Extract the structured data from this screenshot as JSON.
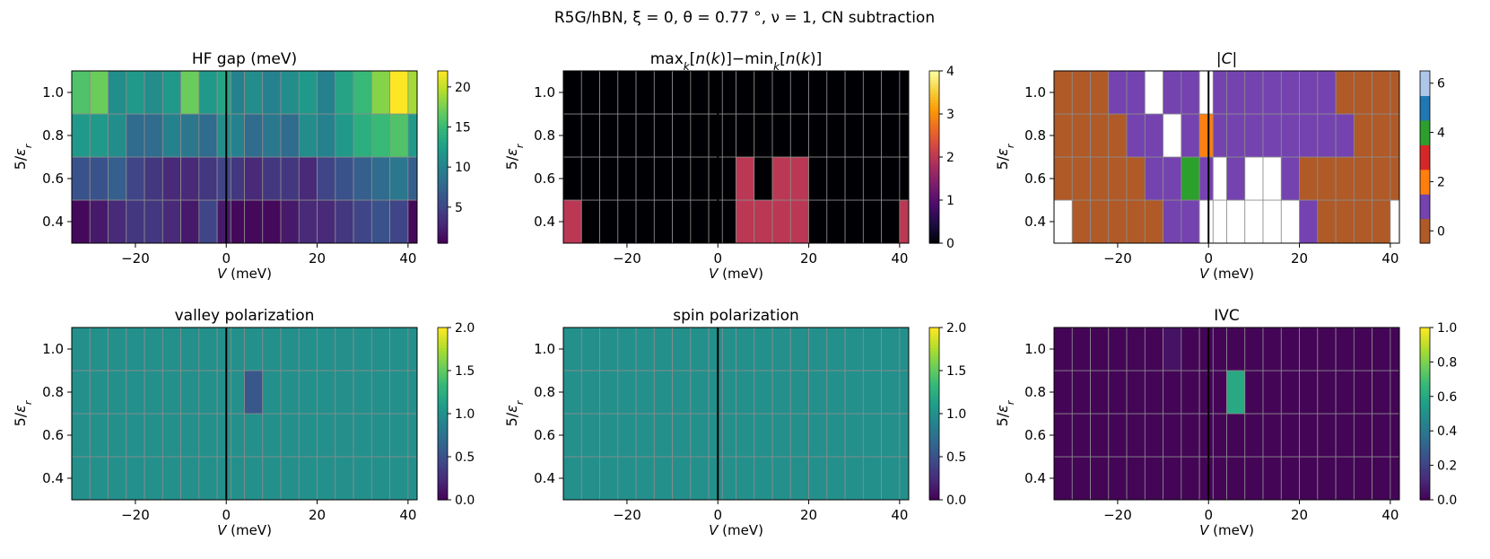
{
  "suptitle": "R5G/hBN,  ξ = 0,  θ = 0.77 °,  ν = 1,  CN subtraction",
  "chart_data": [
    {
      "type": "heatmap",
      "title": "HF gap (meV)",
      "xlabel": "V (meV)",
      "ylabel": "5/εr",
      "colormap": "viridis",
      "xlim": [
        -34,
        42
      ],
      "ylim": [
        0.3,
        1.1
      ],
      "x_centers": [
        -32,
        -28,
        -24,
        -20,
        -16,
        -12,
        -8,
        -4,
        0,
        2,
        6,
        10,
        14,
        18,
        22,
        26,
        30,
        34,
        38,
        42
      ],
      "y_centers": [
        0.4,
        0.6,
        0.8,
        1.0
      ],
      "xticks": [
        "−20",
        "0",
        "20",
        "40"
      ],
      "xtick_values": [
        -20,
        0,
        20,
        40
      ],
      "yticks": [
        "0.4",
        "0.6",
        "0.8",
        "1.0"
      ],
      "ytick_values": [
        0.4,
        0.6,
        0.8,
        1.0
      ],
      "clim": [
        0.5,
        22
      ],
      "cbar_ticks": [
        "5",
        "10",
        "15",
        "20"
      ],
      "cbar_tick_values": [
        5,
        10,
        15,
        20
      ],
      "values": [
        [
          1,
          2,
          3,
          4,
          4,
          3,
          2,
          5,
          2,
          1,
          1,
          1,
          2,
          3,
          3,
          4,
          5,
          6,
          5,
          1
        ],
        [
          6,
          6,
          7,
          5,
          4,
          3,
          3,
          4,
          5,
          4,
          3,
          4,
          4,
          3,
          5,
          6,
          7,
          8,
          9,
          7
        ],
        [
          12,
          12,
          11,
          8,
          8,
          10,
          9,
          8,
          11,
          10,
          8,
          9,
          8,
          11,
          10,
          12,
          14,
          15,
          16,
          12
        ],
        [
          16,
          17,
          11,
          12,
          11,
          12,
          17,
          12,
          13,
          10,
          11,
          10,
          11,
          12,
          10,
          13,
          15,
          18,
          22,
          19
        ]
      ]
    },
    {
      "type": "heatmap",
      "title": "max_k[n(k)]−min_k[n(k)]",
      "xlabel": "V (meV)",
      "ylabel": "5/εr",
      "colormap": "inferno",
      "xlim": [
        -34,
        42
      ],
      "ylim": [
        0.3,
        1.1
      ],
      "x_centers": [
        -32,
        -28,
        -24,
        -20,
        -16,
        -12,
        -8,
        -4,
        0,
        2,
        6,
        10,
        14,
        18,
        22,
        26,
        30,
        34,
        38,
        42
      ],
      "y_centers": [
        0.4,
        0.6,
        0.8,
        1.0
      ],
      "xticks": [
        "−20",
        "0",
        "20",
        "40"
      ],
      "xtick_values": [
        -20,
        0,
        20,
        40
      ],
      "yticks": [
        "0.4",
        "0.6",
        "0.8",
        "1.0"
      ],
      "ytick_values": [
        0.4,
        0.6,
        0.8,
        1.0
      ],
      "clim": [
        0,
        4
      ],
      "cbar_ticks": [
        "0",
        "1",
        "2",
        "3",
        "4"
      ],
      "cbar_tick_values": [
        0,
        1,
        2,
        3,
        4
      ],
      "values": [
        [
          2,
          0,
          0,
          0,
          0,
          0,
          0,
          0,
          0,
          0,
          2,
          2,
          2,
          2,
          0,
          0,
          0,
          0,
          0,
          2
        ],
        [
          0,
          0,
          0,
          0,
          0,
          0,
          0,
          0,
          0,
          0,
          2,
          0,
          2,
          2,
          0,
          0,
          0,
          0,
          0,
          0
        ],
        [
          0,
          0,
          0,
          0,
          0,
          0,
          0,
          0,
          0,
          0,
          0,
          0,
          0,
          0,
          0,
          0,
          0,
          0,
          0,
          0
        ],
        [
          0,
          0,
          0,
          0,
          0,
          0,
          0,
          0,
          0,
          0,
          0,
          0,
          0,
          0,
          0,
          0,
          0,
          0,
          0,
          0
        ]
      ]
    },
    {
      "type": "heatmap",
      "title": "|C|",
      "xlabel": "V (meV)",
      "ylabel": "5/εr",
      "colormap": "discrete",
      "xlim": [
        -34,
        42
      ],
      "ylim": [
        0.3,
        1.1
      ],
      "x_centers": [
        -32,
        -28,
        -24,
        -20,
        -16,
        -12,
        -8,
        -4,
        0,
        2,
        6,
        10,
        14,
        18,
        22,
        26,
        30,
        34,
        38,
        42
      ],
      "y_centers": [
        0.4,
        0.6,
        0.8,
        1.0
      ],
      "xticks": [
        "−20",
        "0",
        "20",
        "40"
      ],
      "xtick_values": [
        -20,
        0,
        20,
        40
      ],
      "yticks": [
        "0.4",
        "0.6",
        "0.8",
        "1.0"
      ],
      "ytick_values": [
        0.4,
        0.6,
        0.8,
        1.0
      ],
      "clim": [
        -0.5,
        6.5
      ],
      "discrete_colors": [
        "#b05a28",
        "#7443b0",
        "#ff7f0e",
        "#d62728",
        "#2ca02c",
        "#1f77b4",
        "#aec7e8"
      ],
      "cbar_ticks": [
        "0",
        "2",
        "4",
        "6"
      ],
      "cbar_tick_values": [
        0,
        2,
        4,
        6
      ],
      "values": [
        [
          7,
          0,
          0,
          0,
          0,
          0,
          1,
          1,
          7,
          7,
          7,
          7,
          7,
          7,
          1,
          0,
          0,
          0,
          0,
          7
        ],
        [
          0,
          0,
          0,
          0,
          0,
          1,
          1,
          4,
          1,
          7,
          1,
          7,
          7,
          1,
          0,
          0,
          0,
          0,
          0,
          0
        ],
        [
          0,
          0,
          0,
          0,
          1,
          1,
          7,
          1,
          2,
          1,
          1,
          1,
          1,
          1,
          1,
          1,
          1,
          0,
          0,
          0
        ],
        [
          0,
          0,
          0,
          1,
          1,
          7,
          1,
          1,
          7,
          1,
          1,
          1,
          1,
          1,
          1,
          1,
          0,
          0,
          0,
          0
        ]
      ]
    },
    {
      "type": "heatmap",
      "title": "valley polarization",
      "xlabel": "V (meV)",
      "ylabel": "5/εr",
      "colormap": "viridis",
      "xlim": [
        -34,
        42
      ],
      "ylim": [
        0.3,
        1.1
      ],
      "x_centers": [
        -32,
        -28,
        -24,
        -20,
        -16,
        -12,
        -8,
        -4,
        0,
        2,
        6,
        10,
        14,
        18,
        22,
        26,
        30,
        34,
        38,
        42
      ],
      "y_centers": [
        0.4,
        0.6,
        0.8,
        1.0
      ],
      "xticks": [
        "−20",
        "0",
        "20",
        "40"
      ],
      "xtick_values": [
        -20,
        0,
        20,
        40
      ],
      "yticks": [
        "0.4",
        "0.6",
        "0.8",
        "1.0"
      ],
      "ytick_values": [
        0.4,
        0.6,
        0.8,
        1.0
      ],
      "clim": [
        0,
        2
      ],
      "cbar_ticks": [
        "0.0",
        "0.5",
        "1.0",
        "1.5",
        "2.0"
      ],
      "cbar_tick_values": [
        0,
        0.5,
        1,
        1.5,
        2
      ],
      "values": [
        [
          1,
          1,
          1,
          1,
          1,
          1,
          1,
          1,
          1,
          1,
          1,
          1,
          1,
          1,
          1,
          1,
          1,
          1,
          1,
          1
        ],
        [
          1,
          1,
          1,
          1,
          1,
          1,
          1,
          1,
          1,
          1,
          1,
          1,
          1,
          1,
          1,
          1,
          1,
          1,
          1,
          1
        ],
        [
          1,
          1,
          1,
          1,
          1,
          1,
          1,
          1,
          1,
          1,
          0.55,
          1,
          1,
          1,
          1,
          1,
          1,
          1,
          1,
          1
        ],
        [
          1,
          1,
          1,
          1,
          1,
          1,
          1,
          1,
          1,
          1,
          1,
          1,
          1,
          1,
          1,
          1,
          1,
          1,
          1,
          1
        ]
      ]
    },
    {
      "type": "heatmap",
      "title": "spin polarization",
      "xlabel": "V (meV)",
      "ylabel": "5/εr",
      "colormap": "viridis",
      "xlim": [
        -34,
        42
      ],
      "ylim": [
        0.3,
        1.1
      ],
      "x_centers": [
        -32,
        -28,
        -24,
        -20,
        -16,
        -12,
        -8,
        -4,
        0,
        2,
        6,
        10,
        14,
        18,
        22,
        26,
        30,
        34,
        38,
        42
      ],
      "y_centers": [
        0.4,
        0.6,
        0.8,
        1.0
      ],
      "xticks": [
        "−20",
        "0",
        "20",
        "40"
      ],
      "xtick_values": [
        -20,
        0,
        20,
        40
      ],
      "yticks": [
        "0.4",
        "0.6",
        "0.8",
        "1.0"
      ],
      "ytick_values": [
        0.4,
        0.6,
        0.8,
        1.0
      ],
      "clim": [
        0,
        2
      ],
      "cbar_ticks": [
        "0.0",
        "0.5",
        "1.0",
        "1.5",
        "2.0"
      ],
      "cbar_tick_values": [
        0,
        0.5,
        1,
        1.5,
        2
      ],
      "values": [
        [
          1,
          1,
          1,
          1,
          1,
          1,
          1,
          1,
          1,
          1,
          1,
          1,
          1,
          1,
          1,
          1,
          1,
          1,
          1,
          1
        ],
        [
          1,
          1,
          1,
          1,
          1,
          1,
          1,
          1,
          1,
          1,
          1,
          1,
          1,
          1,
          1,
          1,
          1,
          1,
          1,
          1
        ],
        [
          1,
          1,
          1,
          1,
          1,
          1,
          1,
          1,
          1,
          1,
          1,
          1,
          1,
          1,
          1,
          1,
          1,
          1,
          1,
          1
        ],
        [
          1,
          1,
          1,
          1,
          1,
          1,
          1,
          1,
          1,
          1,
          1,
          1,
          1,
          1,
          1,
          1,
          1,
          1,
          1,
          1
        ]
      ]
    },
    {
      "type": "heatmap",
      "title": "IVC",
      "xlabel": "V (meV)",
      "ylabel": "5/εr",
      "colormap": "viridis",
      "xlim": [
        -34,
        42
      ],
      "ylim": [
        0.3,
        1.1
      ],
      "x_centers": [
        -32,
        -28,
        -24,
        -20,
        -16,
        -12,
        -8,
        -4,
        0,
        2,
        6,
        10,
        14,
        18,
        22,
        26,
        30,
        34,
        38,
        42
      ],
      "y_centers": [
        0.4,
        0.6,
        0.8,
        1.0
      ],
      "xticks": [
        "−20",
        "0",
        "20",
        "40"
      ],
      "xtick_values": [
        -20,
        0,
        20,
        40
      ],
      "yticks": [
        "0.4",
        "0.6",
        "0.8",
        "1.0"
      ],
      "ytick_values": [
        0.4,
        0.6,
        0.8,
        1.0
      ],
      "clim": [
        0,
        1
      ],
      "cbar_ticks": [
        "0.0",
        "0.2",
        "0.4",
        "0.6",
        "0.8",
        "1.0"
      ],
      "cbar_tick_values": [
        0,
        0.2,
        0.4,
        0.6,
        0.8,
        1
      ],
      "values": [
        [
          0.01,
          0.01,
          0.01,
          0.01,
          0.01,
          0.01,
          0.01,
          0.01,
          0.01,
          0.01,
          0.01,
          0.01,
          0.01,
          0.01,
          0.01,
          0.01,
          0.01,
          0.01,
          0.01,
          0.01
        ],
        [
          0.01,
          0.01,
          0.01,
          0.01,
          0.01,
          0.01,
          0.01,
          0.01,
          0.01,
          0.01,
          0.01,
          0.01,
          0.01,
          0.01,
          0.01,
          0.01,
          0.01,
          0.01,
          0.01,
          0.01
        ],
        [
          0.01,
          0.01,
          0.01,
          0.01,
          0.01,
          0.01,
          0.01,
          0.01,
          0.01,
          0.01,
          0.6,
          0.01,
          0.01,
          0.01,
          0.01,
          0.01,
          0.01,
          0.01,
          0.01,
          0.01
        ],
        [
          0.01,
          0.01,
          0.01,
          0.01,
          0.01,
          0.01,
          0.05,
          0.01,
          0.01,
          0.01,
          0.01,
          0.01,
          0.01,
          0.01,
          0.01,
          0.01,
          0.01,
          0.01,
          0.01,
          0.01
        ]
      ]
    }
  ]
}
